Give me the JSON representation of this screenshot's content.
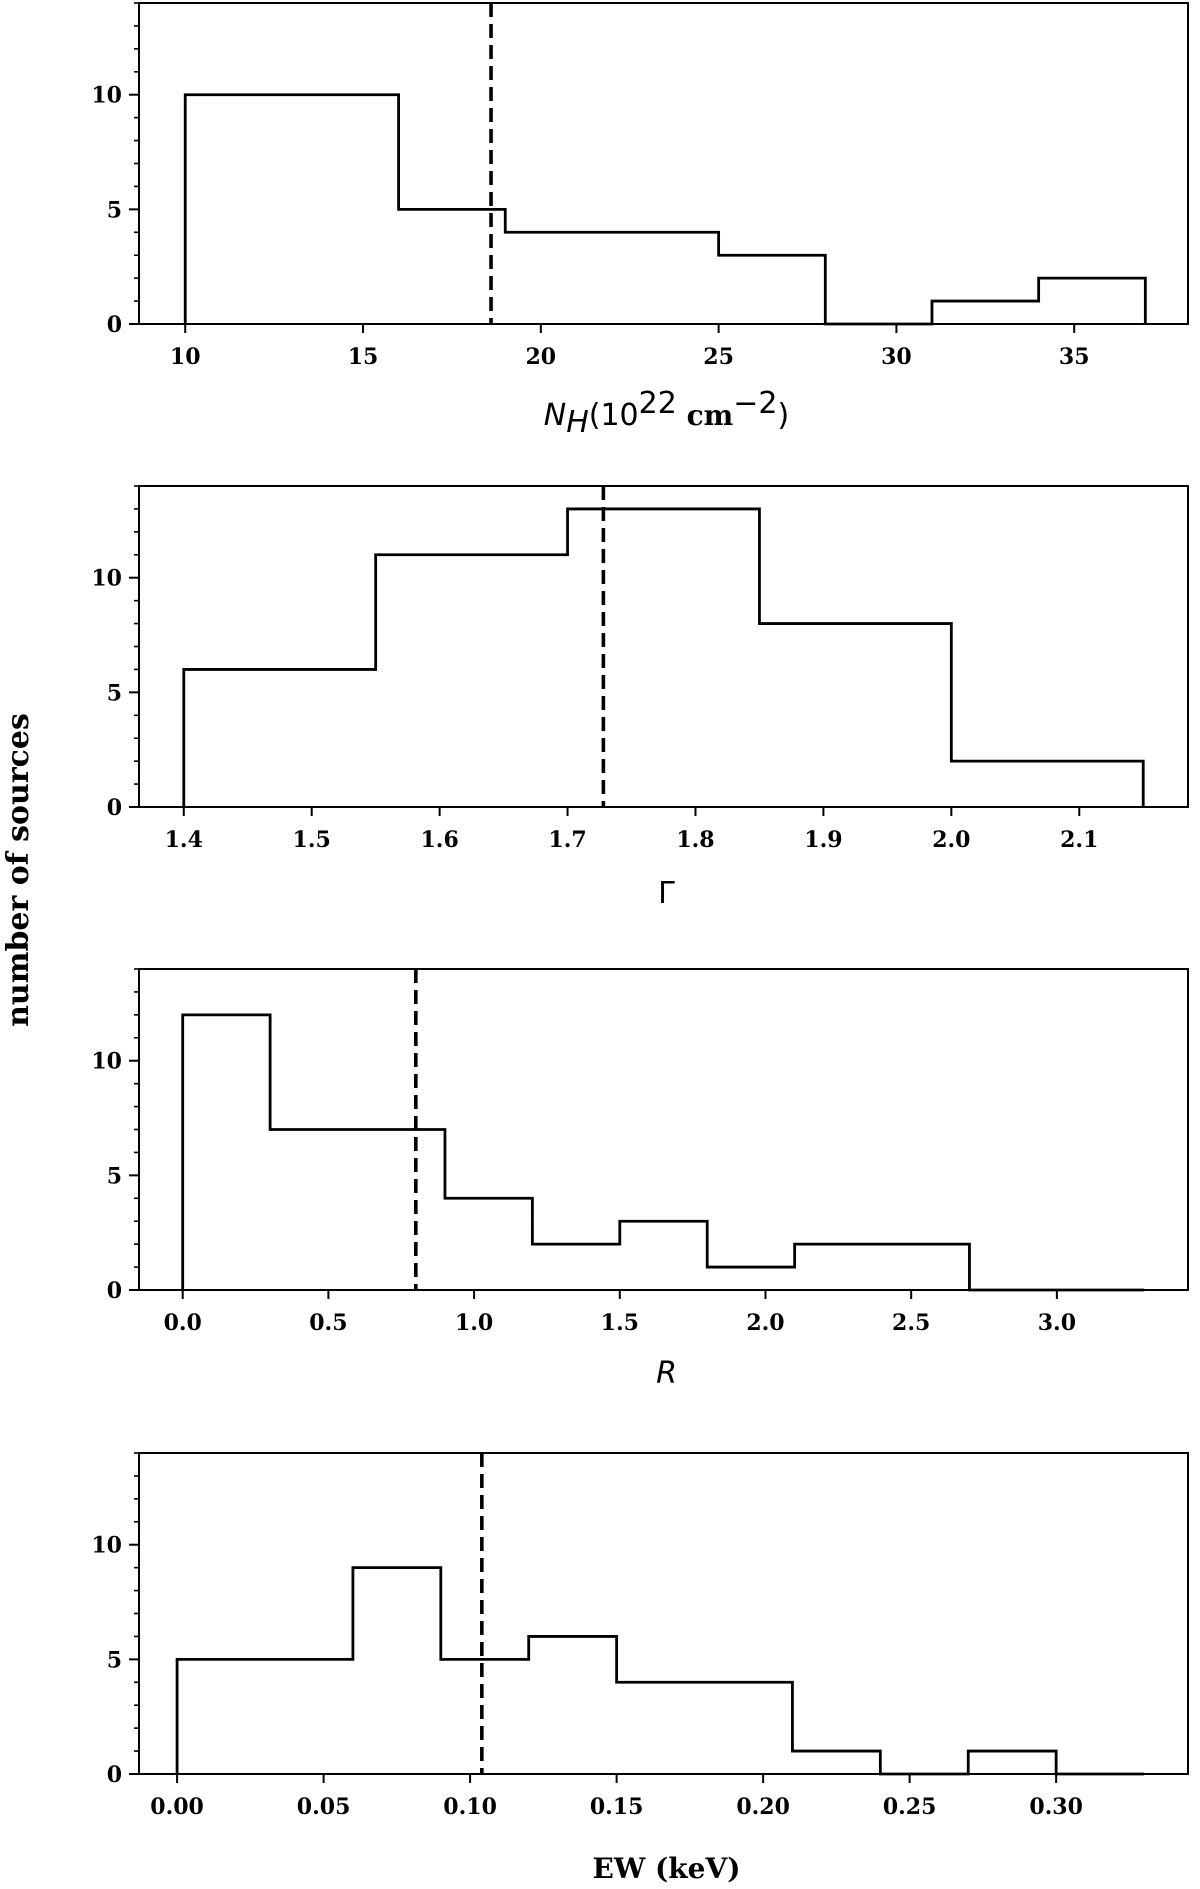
{
  "figure": {
    "ylabel": "number of sources"
  },
  "chart_data": [
    {
      "type": "histogram",
      "xlabel": {
        "prefix": "N",
        "sub": "H",
        "open": "(10",
        "sup": "22",
        "unit": "cm",
        "unit_sup": "−2",
        "close": ")"
      },
      "xlim": [
        8.7,
        38.2
      ],
      "ylim": [
        0,
        14
      ],
      "xticks": [
        10,
        15,
        20,
        25,
        30,
        35
      ],
      "xtick_labels": [
        "10",
        "15",
        "20",
        "25",
        "30",
        "35"
      ],
      "yticks": [
        0,
        5,
        10
      ],
      "ytick_labels": [
        "0",
        "5",
        "10"
      ],
      "bin_edges": [
        10,
        13,
        16,
        19,
        22,
        25,
        28,
        31,
        34,
        37
      ],
      "counts": [
        10,
        10,
        5,
        4,
        4,
        3,
        0,
        1,
        2
      ],
      "median_line": 18.6
    },
    {
      "type": "histogram",
      "xlabel": {
        "symbol": "Γ"
      },
      "xlim": [
        1.365,
        2.185
      ],
      "ylim": [
        0,
        14
      ],
      "xticks": [
        1.4,
        1.5,
        1.6,
        1.7,
        1.8,
        1.9,
        2.0,
        2.1
      ],
      "xtick_labels": [
        "1.4",
        "1.5",
        "1.6",
        "1.7",
        "1.8",
        "1.9",
        "2.0",
        "2.1"
      ],
      "yticks": [
        0,
        5,
        10
      ],
      "ytick_labels": [
        "0",
        "5",
        "10"
      ],
      "bin_edges": [
        1.4,
        1.55,
        1.7,
        1.85,
        2.0,
        2.15
      ],
      "counts": [
        6,
        11,
        13,
        8,
        2
      ],
      "median_line": 1.728
    },
    {
      "type": "histogram",
      "xlabel": {
        "symbol": "R"
      },
      "xlim": [
        -0.15,
        3.45
      ],
      "ylim": [
        0,
        14
      ],
      "xticks": [
        0.0,
        0.5,
        1.0,
        1.5,
        2.0,
        2.5,
        3.0
      ],
      "xtick_labels": [
        "0.0",
        "0.5",
        "1.0",
        "1.5",
        "2.0",
        "2.5",
        "3.0"
      ],
      "yticks": [
        0,
        5,
        10
      ],
      "ytick_labels": [
        "0",
        "5",
        "10"
      ],
      "bin_edges": [
        0.0,
        0.3,
        0.6,
        0.9,
        1.2,
        1.5,
        1.8,
        2.1,
        2.4,
        2.7,
        3.0,
        3.3
      ],
      "counts": [
        12,
        7,
        7,
        4,
        2,
        3,
        1,
        2,
        2,
        0,
        0
      ],
      "median_line": 0.8
    },
    {
      "type": "histogram",
      "xlabel": {
        "text": "EW (keV)"
      },
      "xlim": [
        -0.013,
        0.345
      ],
      "ylim": [
        0,
        14
      ],
      "xticks": [
        0.0,
        0.05,
        0.1,
        0.15,
        0.2,
        0.25,
        0.3
      ],
      "xtick_labels": [
        "0.00",
        "0.05",
        "0.10",
        "0.15",
        "0.20",
        "0.25",
        "0.30"
      ],
      "yticks": [
        0,
        5,
        10
      ],
      "ytick_labels": [
        "0",
        "5",
        "10"
      ],
      "bin_edges": [
        0.0,
        0.03,
        0.06,
        0.09,
        0.12,
        0.15,
        0.18,
        0.21,
        0.24,
        0.27,
        0.3,
        0.33
      ],
      "counts": [
        5,
        5,
        9,
        5,
        6,
        4,
        4,
        1,
        0,
        1,
        0
      ],
      "median_line": 0.104
    }
  ]
}
